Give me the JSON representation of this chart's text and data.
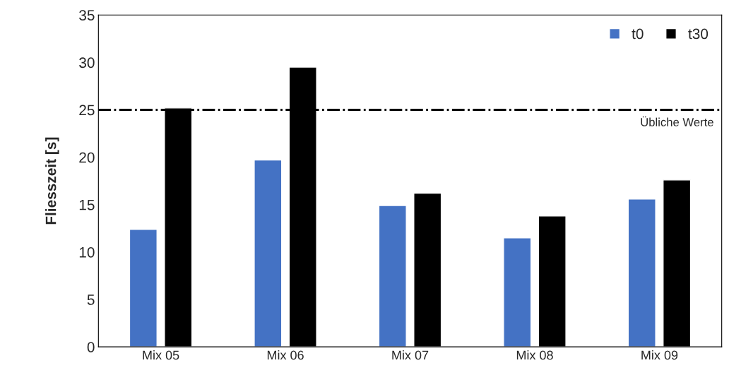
{
  "chart_data": {
    "type": "bar",
    "ylabel": "Fliesszeit [s]",
    "categories": [
      "Mix 05",
      "Mix 06",
      "Mix 07",
      "Mix 08",
      "Mix 09"
    ],
    "series": [
      {
        "name": "t0",
        "color": "#4472c4",
        "values": [
          12.4,
          19.7,
          14.9,
          11.5,
          15.6
        ]
      },
      {
        "name": "t30",
        "color": "#000000",
        "values": [
          25.2,
          29.5,
          16.2,
          13.8,
          17.6
        ]
      }
    ],
    "ylim": [
      0,
      35
    ],
    "yticks": [
      0,
      5,
      10,
      15,
      20,
      25,
      30,
      35
    ],
    "ref_lines": [
      {
        "axis": "y",
        "value": 25,
        "label": "Übliche Werte",
        "color": "#000000",
        "line_style": "dashdot"
      }
    ],
    "grid": false,
    "legend": "top right"
  }
}
